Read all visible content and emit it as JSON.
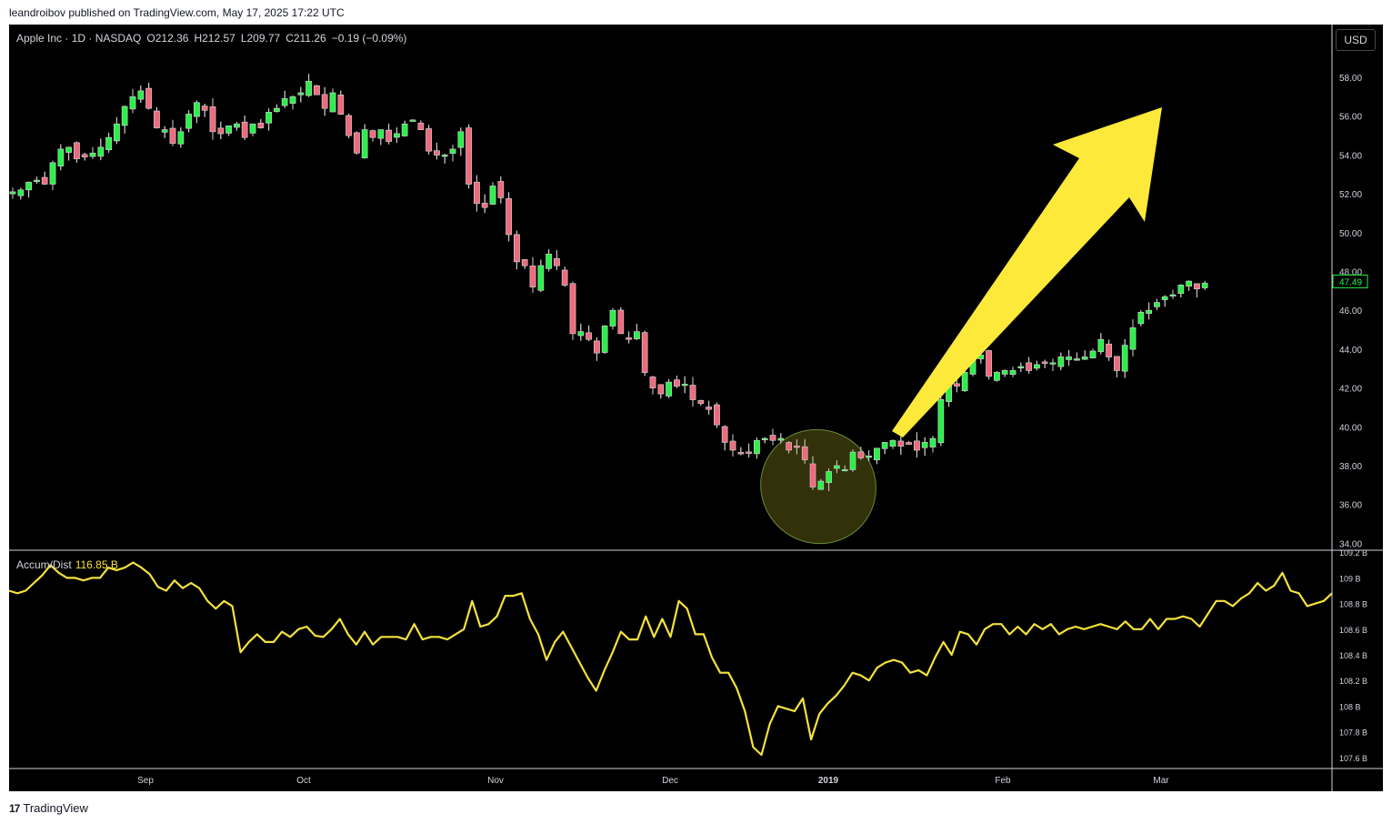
{
  "published": "leandroibov published on TradingView.com, May 17, 2025 17:22 UTC",
  "header": {
    "symbol": "Apple Inc · 1D · NASDAQ",
    "open": "O212.36",
    "high": "H212.57",
    "low": "L209.77",
    "close": "C211.26",
    "change": "−0.19 (−0.09%)"
  },
  "currency_button": "USD",
  "indicator": {
    "name": "Accum/Dist",
    "value": "116.85 B"
  },
  "last_price_label": "47.49",
  "footer_brand": "TradingView",
  "colors": {
    "up": "#26f246",
    "down": "#f0697c",
    "line": "#f5e23c",
    "arrow": "#fde93a",
    "ellipse": "#3b3a0c"
  },
  "chart_data": [
    {
      "type": "candlestick",
      "price_ylim": [
        34,
        59
      ],
      "y_ticks": [
        "58.00",
        "56.00",
        "54.00",
        "52.00",
        "50.00",
        "48.00",
        "46.00",
        "44.00",
        "42.00",
        "40.00",
        "38.00",
        "36.00",
        "34.00"
      ],
      "x_ticks": [
        "Sep",
        "Oct",
        "Nov",
        "Dec",
        "2019",
        "Feb",
        "Mar"
      ],
      "close_series": [
        52.1,
        52.2,
        52.6,
        52.7,
        52.5,
        53.6,
        54.3,
        54.4,
        53.8,
        53.9,
        54.1,
        54.4,
        54.9,
        55.6,
        56.5,
        57.0,
        57.3,
        56.4,
        55.4,
        55.3,
        54.6,
        55.2,
        56.1,
        56.7,
        56.3,
        55.2,
        55.1,
        55.5,
        55.6,
        54.9,
        55.6,
        55.4,
        56.2,
        56.4,
        56.9,
        57.0,
        57.2,
        57.8,
        57.1,
        56.4,
        57.2,
        56.1,
        55.0,
        54.1,
        55.3,
        54.9,
        55.3,
        54.7,
        55.1,
        55.6,
        55.8,
        55.3,
        54.2,
        54.0,
        54.0,
        54.3,
        55.2,
        52.5,
        51.5,
        51.3,
        52.4,
        51.8,
        49.9,
        48.5,
        48.3,
        47.2,
        48.3,
        48.9,
        48.3,
        47.3,
        44.8,
        44.9,
        44.5,
        43.8,
        45.2,
        46.0,
        44.8,
        44.5,
        44.9,
        42.8,
        42.0,
        41.7,
        42.3,
        42.1,
        42.2,
        41.4,
        41.2,
        40.9,
        40.1,
        39.2,
        38.8,
        38.6,
        38.7,
        39.3,
        39.4,
        39.3,
        39.4,
        38.8,
        39.0,
        38.3,
        36.9,
        37.2,
        37.7,
        38.0,
        37.8,
        38.7,
        38.4,
        38.5,
        38.9,
        39.2,
        39.3,
        39.0,
        39.1,
        38.8,
        39.2,
        39.4,
        41.4,
        42.4,
        42.1,
        42.8,
        43.5,
        43.7,
        42.6,
        42.8,
        42.9,
        42.9,
        43.1,
        42.9,
        43.2,
        43.3,
        43.3,
        43.6,
        43.6,
        43.5,
        43.6,
        43.9,
        44.5,
        43.6,
        42.9,
        44.2,
        45.1,
        45.9,
        46.0,
        46.4,
        46.7,
        46.8,
        47.3,
        47.5,
        47.1,
        47.4
      ],
      "annotation": "yellow arrow pointing up-right from the highlighted December 2018 low"
    },
    {
      "type": "line",
      "name": "Accum/Dist",
      "ylim": [
        107.55,
        109.25
      ],
      "y_ticks": [
        "109.2 B",
        "109 B",
        "108.8 B",
        "108.6 B",
        "108.4 B",
        "108.2 B",
        "108 B",
        "107.8 B",
        "107.6 B"
      ],
      "values": [
        108.9,
        108.88,
        108.9,
        108.96,
        109.02,
        109.1,
        109.04,
        109.0,
        109.0,
        108.98,
        109.0,
        109.0,
        109.08,
        109.06,
        109.08,
        109.12,
        109.08,
        109.03,
        108.93,
        108.9,
        108.98,
        108.92,
        108.96,
        108.92,
        108.82,
        108.76,
        108.82,
        108.78,
        108.42,
        108.5,
        108.56,
        108.5,
        108.5,
        108.58,
        108.54,
        108.6,
        108.62,
        108.55,
        108.54,
        108.6,
        108.68,
        108.56,
        108.48,
        108.58,
        108.48,
        108.54,
        108.54,
        108.54,
        108.52,
        108.64,
        108.52,
        108.54,
        108.54,
        108.52,
        108.56,
        108.6,
        108.82,
        108.62,
        108.64,
        108.7,
        108.86,
        108.86,
        108.88,
        108.68,
        108.56,
        108.36,
        108.5,
        108.58,
        108.46,
        108.34,
        108.22,
        108.12,
        108.28,
        108.42,
        108.58,
        108.52,
        108.52,
        108.7,
        108.54,
        108.68,
        108.54,
        108.82,
        108.76,
        108.56,
        108.56,
        108.38,
        108.26,
        108.26,
        108.14,
        107.96,
        107.68,
        107.62,
        107.86,
        108.0,
        107.98,
        107.96,
        108.06,
        107.74,
        107.94,
        108.02,
        108.08,
        108.16,
        108.26,
        108.24,
        108.2,
        108.3,
        108.34,
        108.36,
        108.34,
        108.26,
        108.28,
        108.24,
        108.38,
        108.5,
        108.4,
        108.58,
        108.56,
        108.48,
        108.6,
        108.64,
        108.64,
        108.56,
        108.62,
        108.56,
        108.64,
        108.6,
        108.64,
        108.56,
        108.6,
        108.62,
        108.6,
        108.62,
        108.64,
        108.62,
        108.6,
        108.66,
        108.6,
        108.6,
        108.68,
        108.6,
        108.68,
        108.68,
        108.7,
        108.68,
        108.62,
        108.72,
        108.82,
        108.82,
        108.78,
        108.84,
        108.88,
        108.96,
        108.9,
        108.94,
        109.04,
        108.9,
        108.88,
        108.78,
        108.8,
        108.82,
        108.88
      ]
    }
  ]
}
